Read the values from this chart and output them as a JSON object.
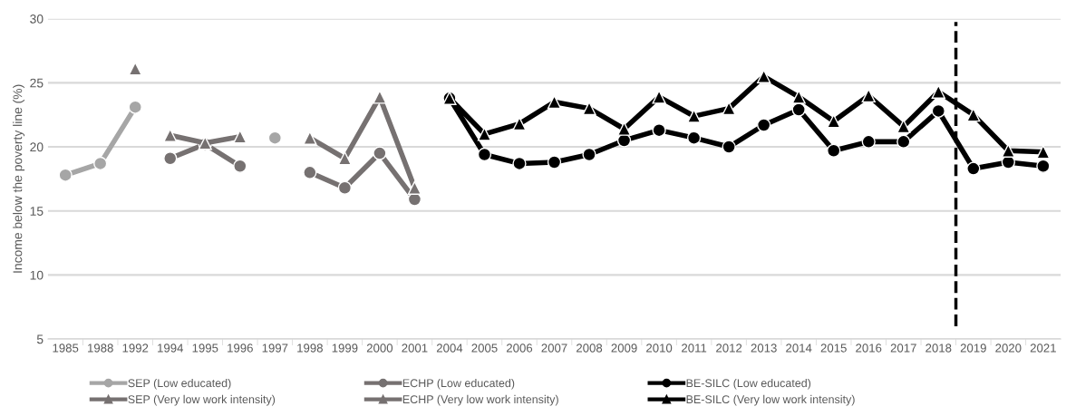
{
  "chart_data": {
    "type": "line",
    "ylabel": "Income below the poverty line (%)",
    "categories": [
      "1985",
      "1988",
      "1992",
      "1994",
      "1995",
      "1996",
      "1997",
      "1998",
      "1999",
      "2000",
      "2001",
      "2004",
      "2005",
      "2006",
      "2007",
      "2008",
      "2009",
      "2010",
      "2011",
      "2012",
      "2013",
      "2014",
      "2015",
      "2016",
      "2017",
      "2018",
      "2019",
      "2020",
      "2021"
    ],
    "ylim": [
      5,
      30
    ],
    "yticks": [
      5,
      10,
      15,
      20,
      25,
      30
    ],
    "grid": "y",
    "legend": "bottom",
    "series": [
      {
        "name": "SEP (Low educated)",
        "color": "#a6a6a6",
        "marker": "circle",
        "values": [
          17.8,
          18.7,
          23.1,
          null,
          null,
          null,
          20.7,
          null,
          null,
          null,
          null,
          null,
          null,
          null,
          null,
          null,
          null,
          null,
          null,
          null,
          null,
          null,
          null,
          null,
          null,
          null,
          null,
          null,
          null
        ]
      },
      {
        "name": "SEP (Very low work intensity)",
        "color": "#767171",
        "marker": "triangle",
        "values": [
          null,
          null,
          26.1,
          null,
          null,
          null,
          null,
          null,
          null,
          null,
          null,
          null,
          null,
          null,
          null,
          null,
          null,
          null,
          null,
          null,
          null,
          null,
          null,
          null,
          null,
          null,
          null,
          null,
          null
        ]
      },
      {
        "name": "ECHP (Low educated)",
        "color": "#767171",
        "marker": "circle",
        "values": [
          null,
          null,
          null,
          19.1,
          20.2,
          18.5,
          null,
          18.0,
          16.8,
          19.5,
          15.9,
          null,
          null,
          null,
          null,
          null,
          null,
          null,
          null,
          null,
          null,
          null,
          null,
          null,
          null,
          null,
          null,
          null,
          null
        ]
      },
      {
        "name": "ECHP (Very low work intensity)",
        "color": "#767171",
        "marker": "triangle",
        "values": [
          null,
          null,
          null,
          20.9,
          20.3,
          20.8,
          null,
          20.7,
          19.1,
          23.9,
          16.8,
          null,
          null,
          null,
          null,
          null,
          null,
          null,
          null,
          null,
          null,
          null,
          null,
          null,
          null,
          null,
          null,
          null,
          null
        ]
      },
      {
        "name": "BE-SILC (Low educated)",
        "color": "#000000",
        "marker": "circle",
        "values": [
          null,
          null,
          null,
          null,
          null,
          null,
          null,
          null,
          null,
          null,
          null,
          23.8,
          19.4,
          18.7,
          18.8,
          19.4,
          20.5,
          21.3,
          20.7,
          20.0,
          21.7,
          22.9,
          19.7,
          20.4,
          20.4,
          22.8,
          18.3,
          18.8,
          18.5
        ]
      },
      {
        "name": "BE-SILC (Very low work intensity)",
        "color": "#000000",
        "marker": "triangle",
        "values": [
          null,
          null,
          null,
          null,
          null,
          null,
          null,
          null,
          null,
          null,
          null,
          23.8,
          21.0,
          21.8,
          23.5,
          23.0,
          21.4,
          23.9,
          22.4,
          23.0,
          25.5,
          23.9,
          22.0,
          24.0,
          21.6,
          24.3,
          22.5,
          19.7,
          19.6
        ]
      }
    ],
    "ref_lines": [
      {
        "axis": "x",
        "value": "2018",
        "color": "#000000",
        "line_style": "dashed"
      }
    ]
  }
}
